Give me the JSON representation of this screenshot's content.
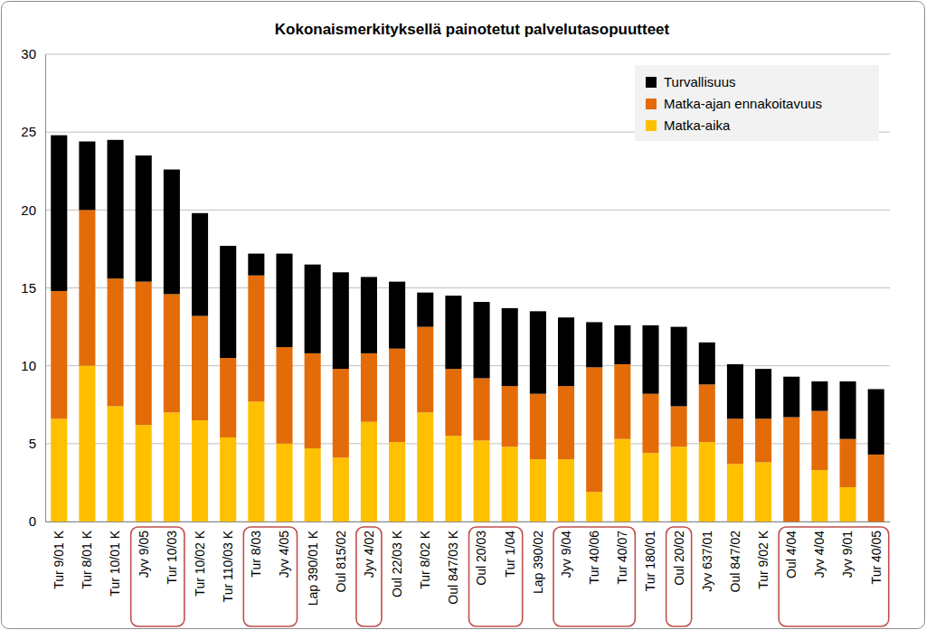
{
  "chart_data": {
    "type": "bar",
    "title": "Kokonaismerkityksellä painotetut palvelutasopuutteet",
    "stacked": true,
    "grid": true,
    "legend": "upper right",
    "categories": [
      "Tur 9/01 K",
      "Tur 8/01 K",
      "Tur 10/01 K",
      "Jyv 9/05",
      "Tur 10/03",
      "Tur 10/02 K",
      "Tur 110/03 K",
      "Tur 8/03",
      "Jyv 4/05",
      "Lap 390/01 K",
      "Oul 815/02",
      "Jyv 4/02",
      "Oul 22/03 K",
      "Tur 8/02 K",
      "Oul 847/03 K",
      "Oul 20/03",
      "Tur 1/04",
      "Lap 390/02",
      "Jyv 9/04",
      "Tur 40/06",
      "Tur 40/07",
      "Tur 180/01",
      "Oul 20/02",
      "Jyv 637/01",
      "Oul 847/02",
      "Tur 9/02 K",
      "Oul 4/04",
      "Jyv 4/04",
      "Jyv 9/01",
      "Tur 40/05"
    ],
    "series": [
      {
        "name": "Matka-aika",
        "color": "#ffc000",
        "values": [
          6.6,
          10.0,
          7.4,
          6.2,
          7.0,
          6.5,
          5.4,
          7.7,
          5.0,
          4.7,
          4.1,
          6.4,
          5.1,
          7.0,
          5.5,
          5.2,
          4.8,
          4.0,
          4.0,
          1.9,
          5.3,
          4.4,
          4.8,
          5.1,
          3.7,
          3.8,
          0,
          3.3,
          2.2,
          0
        ]
      },
      {
        "name": "Matka-ajan ennakoitavuus",
        "color": "#e36c09",
        "values": [
          8.2,
          10.0,
          8.2,
          9.2,
          7.6,
          6.7,
          5.1,
          8.1,
          6.2,
          6.1,
          5.7,
          4.4,
          6.0,
          5.5,
          4.3,
          4.0,
          3.9,
          4.2,
          4.7,
          8.0,
          4.8,
          3.8,
          2.6,
          3.7,
          2.9,
          2.8,
          6.7,
          3.8,
          3.1,
          4.3
        ]
      },
      {
        "name": "Turvallisuus",
        "color": "#000000",
        "values": [
          10.0,
          4.4,
          8.9,
          8.1,
          8.0,
          6.6,
          7.2,
          1.4,
          6.0,
          5.7,
          6.2,
          4.9,
          4.3,
          2.2,
          4.7,
          4.9,
          5.0,
          5.3,
          4.4,
          2.9,
          2.5,
          4.4,
          5.1,
          2.7,
          3.5,
          3.2,
          2.6,
          1.9,
          3.7,
          4.2
        ]
      }
    ],
    "ylim": [
      0,
      30
    ],
    "yticks": [
      0,
      5,
      10,
      15,
      20,
      25,
      30
    ]
  }
}
